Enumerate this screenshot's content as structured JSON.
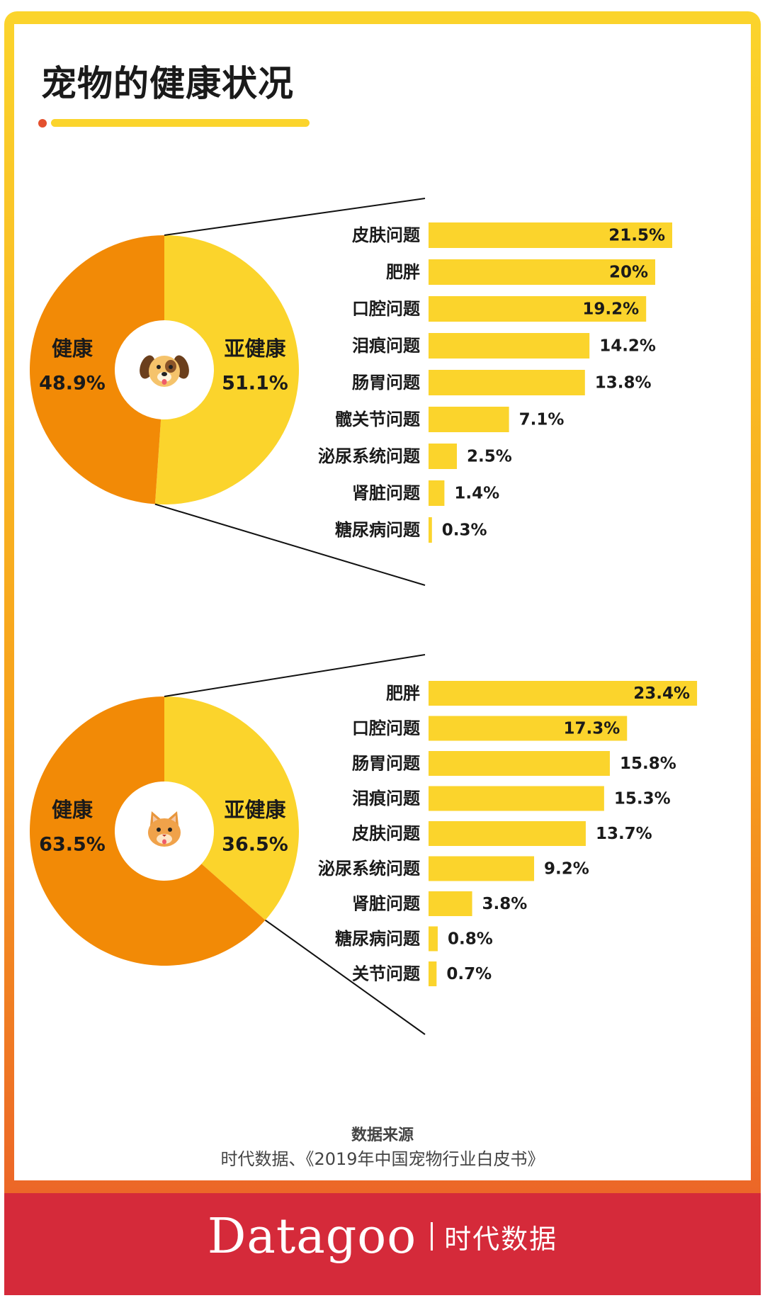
{
  "title": "宠物的健康状况",
  "source": {
    "label": "数据来源",
    "text": "时代数据、《2019年中国宠物行业白皮书》"
  },
  "brand": {
    "logo": "Datagoo",
    "name": "时代数据"
  },
  "colors": {
    "healthy": "#f28a06",
    "subhealthy": "#fbd42c",
    "bar": "#fbd42c",
    "footer": "#d52a3a",
    "title_underline": "#fbd42c",
    "title_dot": "#e4502e"
  },
  "chart_data": [
    {
      "type": "pie",
      "pet_icon": "dog-icon",
      "slices": [
        {
          "label": "健康",
          "value": 48.9,
          "display": "48.9%",
          "color": "#f28a06"
        },
        {
          "label": "亚健康",
          "value": 51.1,
          "display": "51.1%",
          "color": "#fbd42c"
        }
      ]
    },
    {
      "type": "bar",
      "orientation": "horizontal",
      "categories": [
        "皮肤问题",
        "肥胖",
        "口腔问题",
        "泪痕问题",
        "肠胃问题",
        "髋关节问题",
        "泌尿系统问题",
        "肾脏问题",
        "糖尿病问题"
      ],
      "values": [
        21.5,
        20,
        19.2,
        14.2,
        13.8,
        7.1,
        2.5,
        1.4,
        0.3
      ],
      "labels": [
        "21.5%",
        "20%",
        "19.2%",
        "14.2%",
        "13.8%",
        "7.1%",
        "2.5%",
        "1.4%",
        "0.3%"
      ]
    },
    {
      "type": "pie",
      "pet_icon": "cat-icon",
      "slices": [
        {
          "label": "健康",
          "value": 63.5,
          "display": "63.5%",
          "color": "#f28a06"
        },
        {
          "label": "亚健康",
          "value": 36.5,
          "display": "36.5%",
          "color": "#fbd42c"
        }
      ]
    },
    {
      "type": "bar",
      "orientation": "horizontal",
      "categories": [
        "肥胖",
        "口腔问题",
        "肠胃问题",
        "泪痕问题",
        "皮肤问题",
        "泌尿系统问题",
        "肾脏问题",
        "糖尿病问题",
        "关节问题"
      ],
      "values": [
        23.4,
        17.3,
        15.8,
        15.3,
        13.7,
        9.2,
        3.8,
        0.8,
        0.7
      ],
      "labels": [
        "23.4%",
        "17.3%",
        "15.8%",
        "15.3%",
        "13.7%",
        "9.2%",
        "3.8%",
        "0.8%",
        "0.7%"
      ]
    }
  ]
}
